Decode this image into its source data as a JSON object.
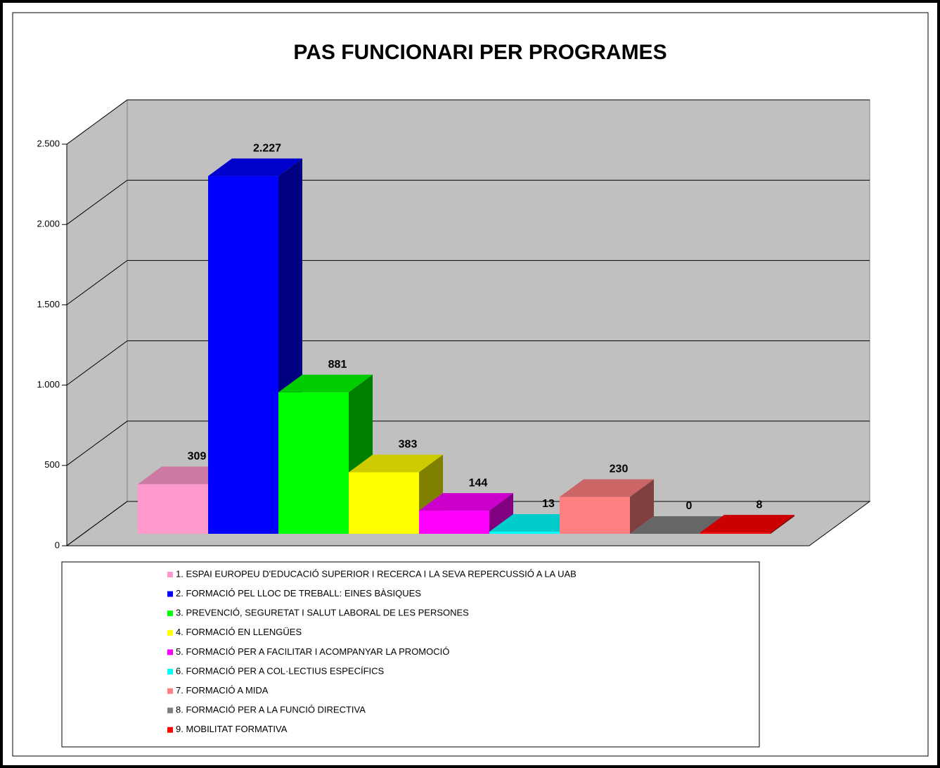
{
  "chart_data": {
    "type": "bar3d",
    "title": "PAS FUNCIONARI PER PROGRAMES",
    "categories": [
      "1. ESPAI EUROPEU D'EDUCACIÓ SUPERIOR I RECERCA I LA SEVA REPERCUSSIÓ A LA UAB",
      "2. FORMACIÓ PEL LLOC DE TREBALL: EINES BÀSIQUES",
      "3. PREVENCIÓ, SEGURETAT I SALUT LABORAL DE LES PERSONES",
      "4. FORMACIÓ EN LLENGÜES",
      "5. FORMACIÓ PER A FACILITAR I ACOMPANYAR LA PROMOCIÓ",
      "6. FORMACIÓ PER A COL·LECTIUS ESPECÍFICS",
      "7. FORMACIÓ A MIDA",
      "8. FORMACIÓ PER A LA FUNCIÓ DIRECTIVA",
      "9. MOBILITAT FORMATIVA"
    ],
    "values": [
      309,
      2227,
      881,
      383,
      144,
      13,
      230,
      0,
      8
    ],
    "value_labels": [
      "309",
      "2.227",
      "881",
      "383",
      "144",
      "13",
      "230",
      "0",
      "8"
    ],
    "colors": [
      "#FF99CC",
      "#0000FF",
      "#00FF00",
      "#FFFF00",
      "#FF00FF",
      "#00FFFF",
      "#FF8080",
      "#808080",
      "#FF0000"
    ],
    "ylim": [
      0,
      2500
    ],
    "yticks": [
      0,
      500,
      {
        "value": 1000,
        "label": "1.000"
      },
      {
        "value": 1500,
        "label": "1.500"
      },
      {
        "value": 2000,
        "label": "2.000"
      },
      {
        "value": 2500,
        "label": "2.500"
      }
    ],
    "grid": true,
    "legend": "bottom"
  }
}
